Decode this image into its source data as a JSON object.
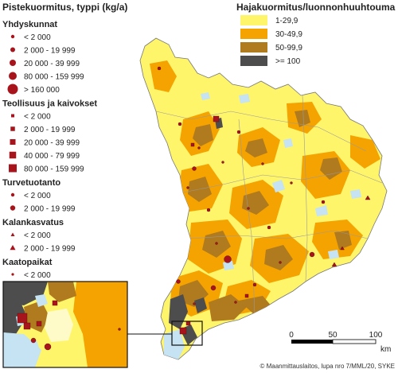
{
  "point_legend": {
    "title": "Pistekuormitus, typpi (kg/a)",
    "groups": [
      {
        "name": "Yhdyskunnat",
        "symbol": "circle",
        "items": [
          "< 2 000",
          "2 000 - 19 999",
          "20 000 - 39 999",
          "80 000 - 159 999",
          "> 160 000"
        ]
      },
      {
        "name": "Teollisuus ja kaivokset",
        "symbol": "square",
        "items": [
          "< 2 000",
          "2 000 - 19 999",
          "20 000 - 39 999",
          "40 000 - 79 999",
          "80 000 - 159 999"
        ]
      },
      {
        "name": "Turvetuotanto",
        "symbol": "circle",
        "items": [
          "< 2 000",
          "2 000 - 19 999"
        ]
      },
      {
        "name": "Kalankasvatus",
        "symbol": "triangle",
        "items": [
          "< 2 000",
          "2 000 - 19 999"
        ]
      },
      {
        "name": "Kaatopaikat",
        "symbol": "circle",
        "items": [
          "< 2 000"
        ]
      }
    ]
  },
  "area_legend": {
    "title": "Hajakuormitus/luonnonhuuhtouma (%)",
    "classes": [
      {
        "label": "1-29,9",
        "color": "#fff56b"
      },
      {
        "label": "30-49,9",
        "color": "#f5a300"
      },
      {
        "label": "50-99,9",
        "color": "#b07a1e"
      },
      {
        "label": ">= 100",
        "color": "#4d4d4d"
      }
    ]
  },
  "scale_bar": {
    "ticks": [
      "0",
      "50",
      "100"
    ],
    "unit": "km"
  },
  "credit": "© Maanmittauslaitos, lupa nro 7/MML/20, SYKE",
  "colors": {
    "marker": "#a8141c",
    "water": "#c5e3f2",
    "background": "#ffffff"
  }
}
